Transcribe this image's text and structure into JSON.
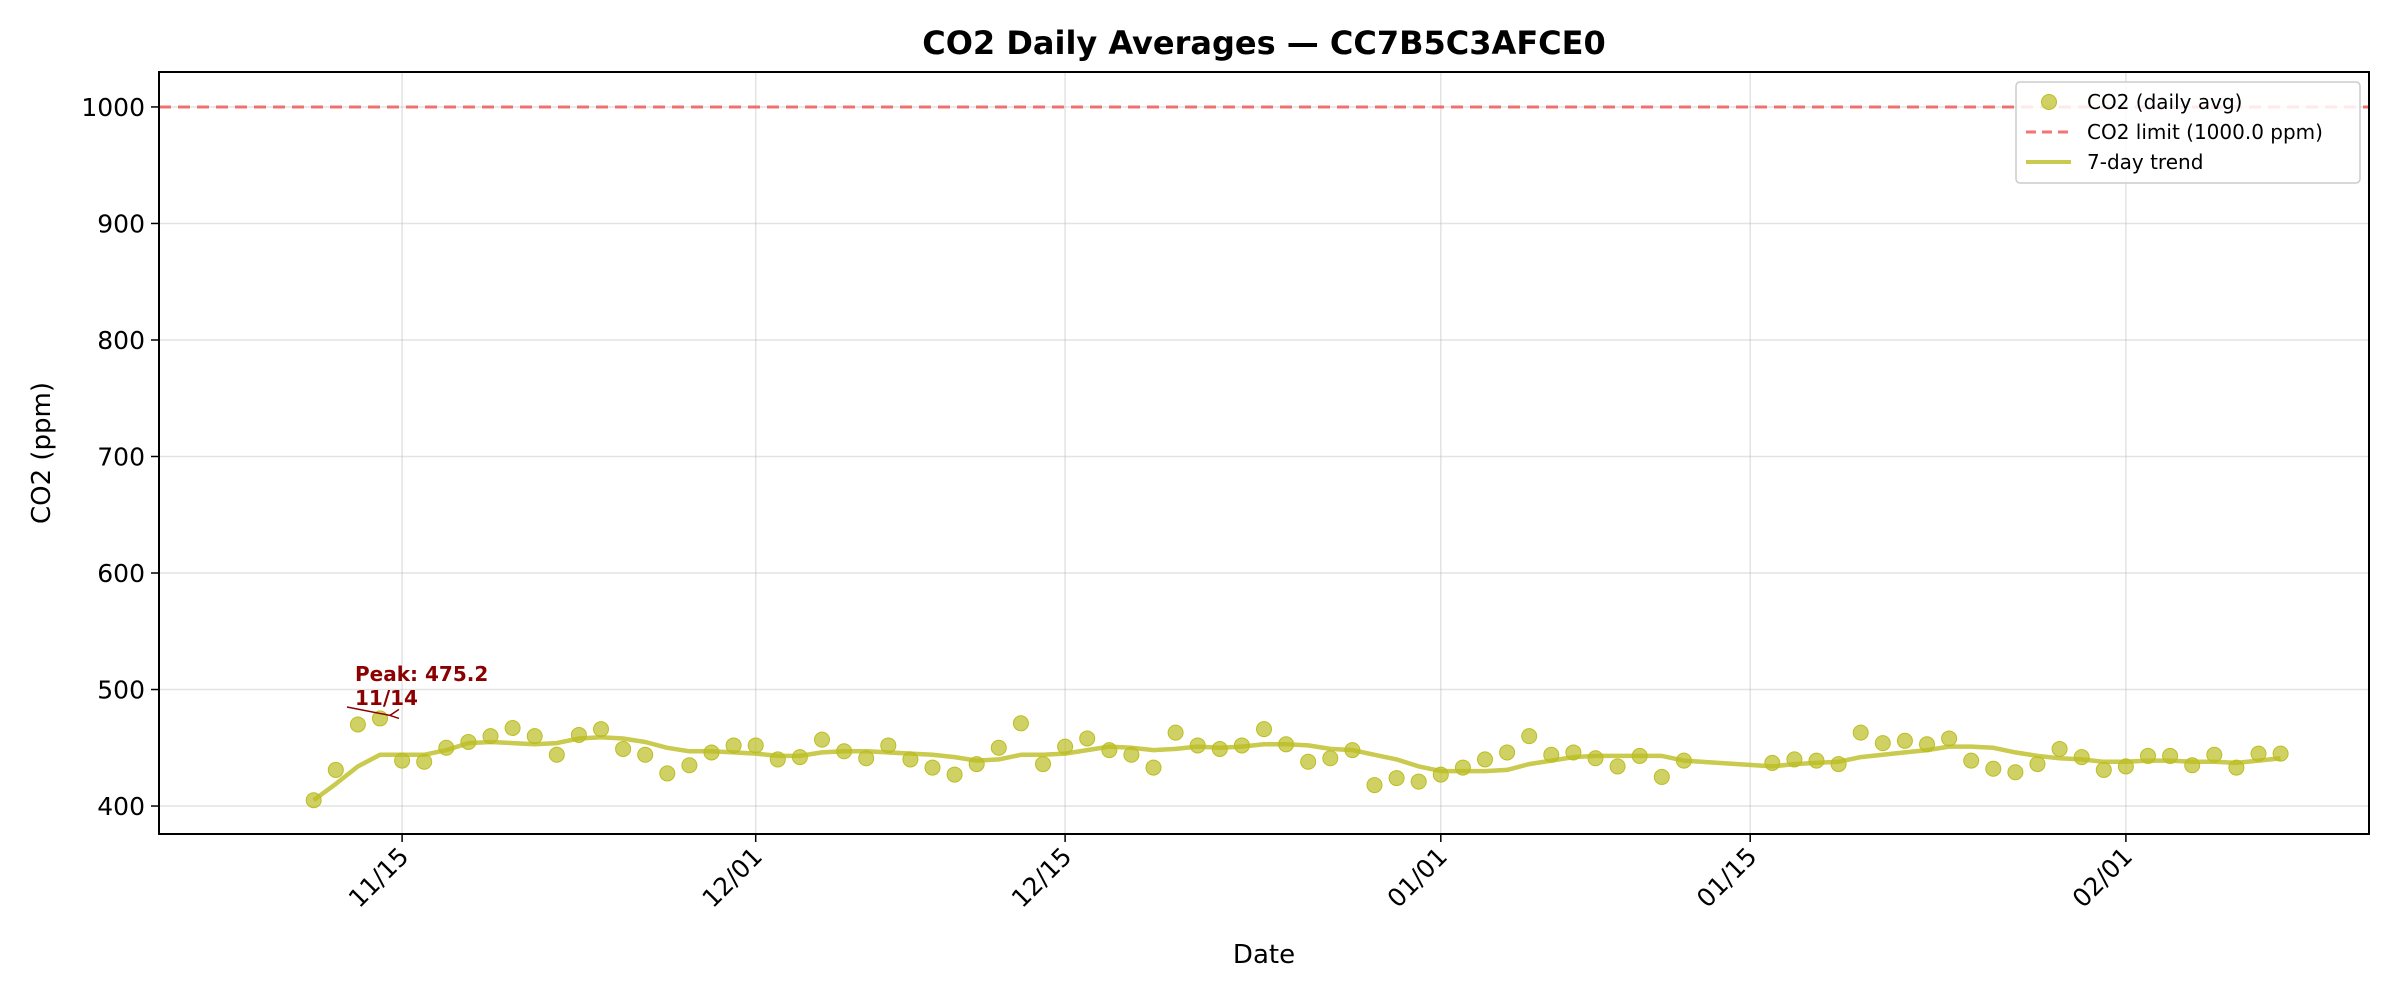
{
  "chart_data": {
    "type": "scatter",
    "title": "CO2 Daily Averages — CC7B5C3AFCE0",
    "xlabel": "Date",
    "ylabel": "CO2 (ppm)",
    "x_ticks": [
      "11/15",
      "12/01",
      "12/15",
      "01/01",
      "01/15",
      "02/01"
    ],
    "x_tick_dates": [
      "2023-11-15",
      "2023-12-01",
      "2023-12-15",
      "2024-01-01",
      "2024-01-15",
      "2024-02-01"
    ],
    "y_ticks": [
      400,
      500,
      600,
      700,
      800,
      900,
      1000
    ],
    "xlim": [
      "2023-11-04",
      "2024-02-12"
    ],
    "ylim": [
      376,
      1030
    ],
    "grid": true,
    "legend_position": "top-right",
    "colors": {
      "scatter": "#bcbd22",
      "trend": "#bcbd22",
      "limit": "#ef5350",
      "annotation": "#8b0000"
    },
    "legend": [
      {
        "label": "CO2 (daily avg)",
        "kind": "marker"
      },
      {
        "label": "CO2 limit (1000.0 ppm)",
        "kind": "dashed"
      },
      {
        "label": "7-day trend",
        "kind": "line"
      }
    ],
    "limit": 1000,
    "annotation": {
      "line1": "Peak: 475.2",
      "line2": "11/14",
      "date": "2023-11-14",
      "value": 475.2
    },
    "series": [
      {
        "name": "CO2 (daily avg)",
        "points": [
          [
            "2023-11-11",
            405
          ],
          [
            "2023-11-12",
            431
          ],
          [
            "2023-11-13",
            470
          ],
          [
            "2023-11-14",
            475.2
          ],
          [
            "2023-11-15",
            439
          ],
          [
            "2023-11-16",
            438
          ],
          [
            "2023-11-17",
            450
          ],
          [
            "2023-11-18",
            455
          ],
          [
            "2023-11-19",
            460
          ],
          [
            "2023-11-20",
            467
          ],
          [
            "2023-11-21",
            460
          ],
          [
            "2023-11-22",
            444
          ],
          [
            "2023-11-23",
            461
          ],
          [
            "2023-11-24",
            466
          ],
          [
            "2023-11-25",
            449
          ],
          [
            "2023-11-26",
            444
          ],
          [
            "2023-11-27",
            428
          ],
          [
            "2023-11-28",
            435
          ],
          [
            "2023-11-29",
            446
          ],
          [
            "2023-11-30",
            452
          ],
          [
            "2023-12-01",
            452
          ],
          [
            "2023-12-02",
            440
          ],
          [
            "2023-12-03",
            442
          ],
          [
            "2023-12-04",
            457
          ],
          [
            "2023-12-05",
            447
          ],
          [
            "2023-12-06",
            441
          ],
          [
            "2023-12-07",
            452
          ],
          [
            "2023-12-08",
            440
          ],
          [
            "2023-12-09",
            433
          ],
          [
            "2023-12-10",
            427
          ],
          [
            "2023-12-11",
            436
          ],
          [
            "2023-12-12",
            450
          ],
          [
            "2023-12-13",
            471
          ],
          [
            "2023-12-14",
            436
          ],
          [
            "2023-12-15",
            451
          ],
          [
            "2023-12-16",
            458
          ],
          [
            "2023-12-17",
            448
          ],
          [
            "2023-12-18",
            444
          ],
          [
            "2023-12-19",
            433
          ],
          [
            "2023-12-20",
            463
          ],
          [
            "2023-12-21",
            452
          ],
          [
            "2023-12-22",
            449
          ],
          [
            "2023-12-23",
            452
          ],
          [
            "2023-12-24",
            466
          ],
          [
            "2023-12-25",
            453
          ],
          [
            "2023-12-26",
            438
          ],
          [
            "2023-12-27",
            441
          ],
          [
            "2023-12-28",
            448
          ],
          [
            "2023-12-29",
            418
          ],
          [
            "2023-12-30",
            424
          ],
          [
            "2023-12-31",
            421
          ],
          [
            "2024-01-01",
            427
          ],
          [
            "2024-01-02",
            433
          ],
          [
            "2024-01-03",
            440
          ],
          [
            "2024-01-04",
            446
          ],
          [
            "2024-01-05",
            460
          ],
          [
            "2024-01-06",
            444
          ],
          [
            "2024-01-07",
            446
          ],
          [
            "2024-01-08",
            441
          ],
          [
            "2024-01-09",
            434
          ],
          [
            "2024-01-10",
            443
          ],
          [
            "2024-01-11",
            425
          ],
          [
            "2024-01-12",
            439
          ],
          [
            "2024-01-16",
            437
          ],
          [
            "2024-01-17",
            440
          ],
          [
            "2024-01-18",
            439
          ],
          [
            "2024-01-19",
            436
          ],
          [
            "2024-01-20",
            463
          ],
          [
            "2024-01-21",
            454
          ],
          [
            "2024-01-22",
            456
          ],
          [
            "2024-01-23",
            453
          ],
          [
            "2024-01-24",
            458
          ],
          [
            "2024-01-25",
            439
          ],
          [
            "2024-01-26",
            432
          ],
          [
            "2024-01-27",
            429
          ],
          [
            "2024-01-28",
            436
          ],
          [
            "2024-01-29",
            449
          ],
          [
            "2024-01-30",
            442
          ],
          [
            "2024-01-31",
            431
          ],
          [
            "2024-02-01",
            434
          ],
          [
            "2024-02-02",
            443
          ],
          [
            "2024-02-03",
            443
          ],
          [
            "2024-02-04",
            435
          ],
          [
            "2024-02-05",
            444
          ],
          [
            "2024-02-06",
            433
          ],
          [
            "2024-02-07",
            445
          ],
          [
            "2024-02-08",
            445
          ]
        ]
      },
      {
        "name": "7-day trend",
        "points": [
          [
            "2023-11-11",
            405
          ],
          [
            "2023-11-12",
            419
          ],
          [
            "2023-11-13",
            434
          ],
          [
            "2023-11-14",
            444
          ],
          [
            "2023-11-15",
            444
          ],
          [
            "2023-11-16",
            444
          ],
          [
            "2023-11-17",
            448
          ],
          [
            "2023-11-18",
            454
          ],
          [
            "2023-11-19",
            455
          ],
          [
            "2023-11-20",
            454
          ],
          [
            "2023-11-21",
            453
          ],
          [
            "2023-11-22",
            454
          ],
          [
            "2023-11-23",
            458
          ],
          [
            "2023-11-24",
            459
          ],
          [
            "2023-11-25",
            458
          ],
          [
            "2023-11-26",
            455
          ],
          [
            "2023-11-27",
            450
          ],
          [
            "2023-11-28",
            447
          ],
          [
            "2023-11-29",
            447
          ],
          [
            "2023-11-30",
            446
          ],
          [
            "2023-12-01",
            445
          ],
          [
            "2023-12-02",
            443
          ],
          [
            "2023-12-03",
            443
          ],
          [
            "2023-12-04",
            446
          ],
          [
            "2023-12-05",
            447
          ],
          [
            "2023-12-06",
            447
          ],
          [
            "2023-12-07",
            446
          ],
          [
            "2023-12-08",
            445
          ],
          [
            "2023-12-09",
            444
          ],
          [
            "2023-12-10",
            442
          ],
          [
            "2023-12-11",
            439
          ],
          [
            "2023-12-12",
            440
          ],
          [
            "2023-12-13",
            444
          ],
          [
            "2023-12-14",
            444
          ],
          [
            "2023-12-15",
            445
          ],
          [
            "2023-12-16",
            448
          ],
          [
            "2023-12-17",
            451
          ],
          [
            "2023-12-18",
            450
          ],
          [
            "2023-12-19",
            448
          ],
          [
            "2023-12-20",
            449
          ],
          [
            "2023-12-21",
            451
          ],
          [
            "2023-12-22",
            450
          ],
          [
            "2023-12-23",
            451
          ],
          [
            "2023-12-24",
            453
          ],
          [
            "2023-12-25",
            453
          ],
          [
            "2023-12-26",
            452
          ],
          [
            "2023-12-27",
            449
          ],
          [
            "2023-12-28",
            448
          ],
          [
            "2023-12-29",
            444
          ],
          [
            "2023-12-30",
            440
          ],
          [
            "2023-12-31",
            434
          ],
          [
            "2024-01-01",
            430
          ],
          [
            "2024-01-02",
            430
          ],
          [
            "2024-01-03",
            430
          ],
          [
            "2024-01-04",
            431
          ],
          [
            "2024-01-05",
            436
          ],
          [
            "2024-01-06",
            439
          ],
          [
            "2024-01-07",
            442
          ],
          [
            "2024-01-08",
            443
          ],
          [
            "2024-01-09",
            443
          ],
          [
            "2024-01-10",
            443
          ],
          [
            "2024-01-11",
            443
          ],
          [
            "2024-01-12",
            439
          ],
          [
            "2024-01-16",
            434
          ],
          [
            "2024-01-17",
            436
          ],
          [
            "2024-01-18",
            437
          ],
          [
            "2024-01-19",
            438
          ],
          [
            "2024-01-20",
            442
          ],
          [
            "2024-01-21",
            444
          ],
          [
            "2024-01-22",
            446
          ],
          [
            "2024-01-23",
            448
          ],
          [
            "2024-01-24",
            451
          ],
          [
            "2024-01-25",
            451
          ],
          [
            "2024-01-26",
            450
          ],
          [
            "2024-01-27",
            446
          ],
          [
            "2024-01-28",
            443
          ],
          [
            "2024-01-29",
            441
          ],
          [
            "2024-01-30",
            440
          ],
          [
            "2024-01-31",
            438
          ],
          [
            "2024-02-01",
            438
          ],
          [
            "2024-02-02",
            439
          ],
          [
            "2024-02-03",
            439
          ],
          [
            "2024-02-04",
            438
          ],
          [
            "2024-02-05",
            438
          ],
          [
            "2024-02-06",
            437
          ],
          [
            "2024-02-07",
            439
          ],
          [
            "2024-02-08",
            441
          ]
        ]
      }
    ]
  }
}
